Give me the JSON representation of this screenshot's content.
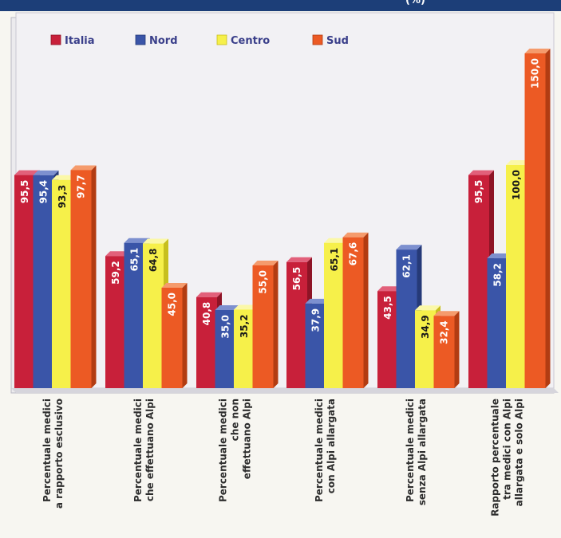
{
  "header": {
    "title_fragment": "(%)"
  },
  "colors": {
    "Italia": {
      "front": "#c8203a",
      "side": "#8e1426",
      "top": "#e2607a"
    },
    "Nord": {
      "front": "#3a55a8",
      "side": "#263a78",
      "top": "#7d90cf"
    },
    "Centro": {
      "front": "#f6f04a",
      "side": "#c7bf1e",
      "top": "#fbf8a8"
    },
    "Sud": {
      "front": "#ec5a24",
      "side": "#b23c12",
      "top": "#f59b6c"
    }
  },
  "chart_data": {
    "type": "bar",
    "title": "",
    "xlabel": "",
    "ylabel": "",
    "ylim": [
      0,
      155
    ],
    "legend_position": "top",
    "grid": false,
    "categories": [
      [
        "Percentuale medici",
        "a rapporto esclusivo"
      ],
      [
        "Percentuale medici",
        "che effettuano Alpi"
      ],
      [
        "Percentuale medici",
        "che non",
        "effettuano Alpi"
      ],
      [
        "Percentuale medici",
        "con Alpi allargata"
      ],
      [
        "Percentuale medici",
        "senza Alpi allargata"
      ],
      [
        "Rapporto percentuale",
        "tra medici con Alpi",
        "allargata e solo Alpi"
      ]
    ],
    "series": [
      {
        "name": "Italia",
        "values": [
          95.5,
          59.2,
          40.8,
          56.5,
          43.5,
          95.5
        ],
        "labels": [
          "95,5",
          "59,2",
          "40,8",
          "56,5",
          "43,5",
          "95,5"
        ]
      },
      {
        "name": "Nord",
        "values": [
          95.4,
          65.1,
          35.0,
          37.9,
          62.1,
          58.2
        ],
        "labels": [
          "95,4",
          "65,1",
          "35,0",
          "37,9",
          "62,1",
          "58,2"
        ]
      },
      {
        "name": "Centro",
        "values": [
          93.3,
          64.8,
          35.2,
          65.1,
          34.9,
          100.0
        ],
        "labels": [
          "93,3",
          "64,8",
          "35,2",
          "65,1",
          "34,9",
          "100,0"
        ]
      },
      {
        "name": "Sud",
        "values": [
          97.7,
          45.0,
          55.0,
          67.6,
          32.4,
          150.0
        ],
        "labels": [
          "97,7",
          "45,0",
          "55,0",
          "67,6",
          "32,4",
          "150,0"
        ]
      }
    ]
  }
}
